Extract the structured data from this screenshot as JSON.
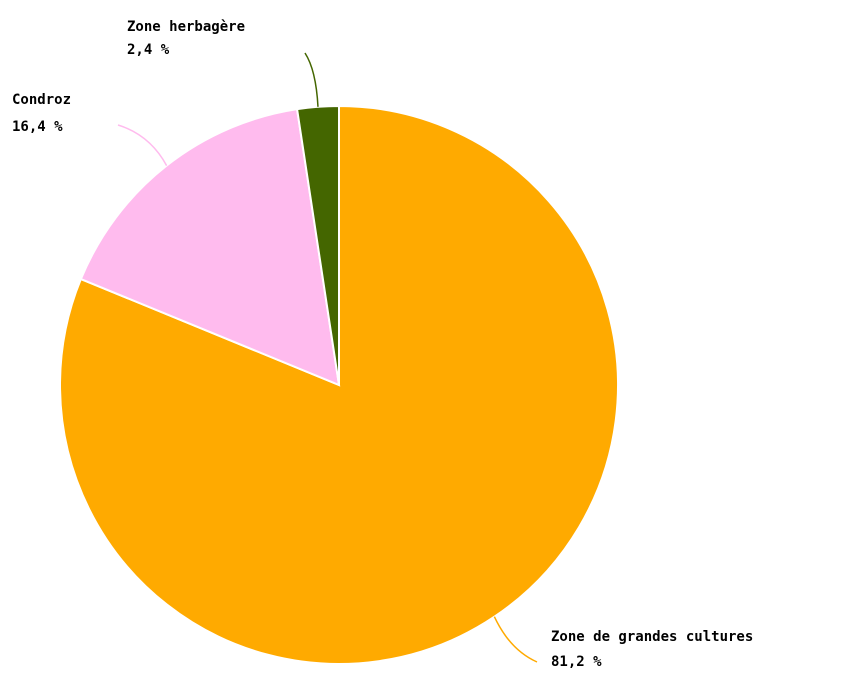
{
  "chart_data": {
    "type": "pie",
    "categories": [
      "Zone de grandes cultures",
      "Condroz",
      "Zone herbagère"
    ],
    "values": [
      81.2,
      16.4,
      2.4
    ],
    "value_labels": [
      "81,2 %",
      "16,4 %",
      "2,4 %"
    ],
    "colors": [
      "#ffaa00",
      "#ffbbee",
      "#446600"
    ]
  }
}
